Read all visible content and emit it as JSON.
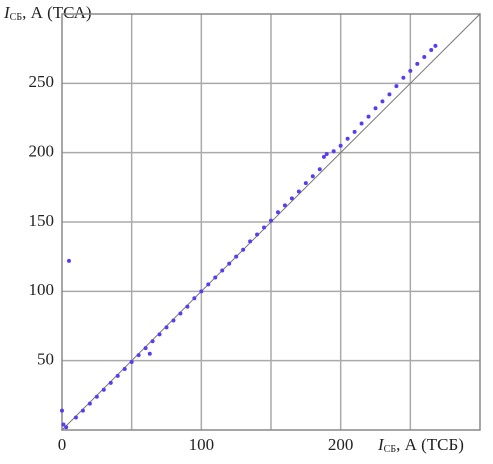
{
  "chart_data": {
    "type": "scatter",
    "x_label": {
      "symbol": "I",
      "subscript": "СБ",
      "text": ", А (ТСБ)"
    },
    "y_label": {
      "symbol": "I",
      "subscript": "СБ",
      "text": ", А (ТСА)"
    },
    "xlim": [
      0,
      300
    ],
    "ylim": [
      0,
      300
    ],
    "xticks": [
      0,
      100,
      200
    ],
    "x_grid": [
      50,
      100,
      150,
      200,
      250
    ],
    "yticks": [
      50,
      100,
      150,
      200,
      250
    ],
    "grid": true,
    "diagonal": true,
    "series": [
      {
        "color": "#5a3cf0",
        "x": [
          0,
          1,
          3,
          5,
          10,
          15,
          20,
          25,
          30,
          35,
          40,
          45,
          50,
          55,
          60,
          63,
          65,
          70,
          75,
          80,
          85,
          90,
          95,
          100,
          105,
          110,
          115,
          120,
          125,
          130,
          135,
          140,
          145,
          150,
          155,
          160,
          165,
          170,
          175,
          180,
          185,
          188,
          190,
          195,
          200,
          205,
          210,
          215,
          220,
          225,
          230,
          235,
          240,
          245,
          250,
          255,
          260,
          265,
          268
        ],
        "values": [
          14,
          4,
          2,
          122,
          9,
          14,
          19,
          24,
          29,
          34,
          39,
          44,
          49,
          54,
          59,
          55,
          64,
          69,
          74,
          79,
          84,
          89,
          95,
          100,
          105,
          110,
          115,
          120,
          125,
          130,
          136,
          141,
          146,
          151,
          157,
          162,
          167,
          172,
          178,
          183,
          188,
          197,
          199,
          201,
          205,
          210,
          215,
          221,
          226,
          232,
          237,
          242,
          248,
          254,
          259,
          264,
          269,
          274,
          277
        ]
      }
    ]
  }
}
